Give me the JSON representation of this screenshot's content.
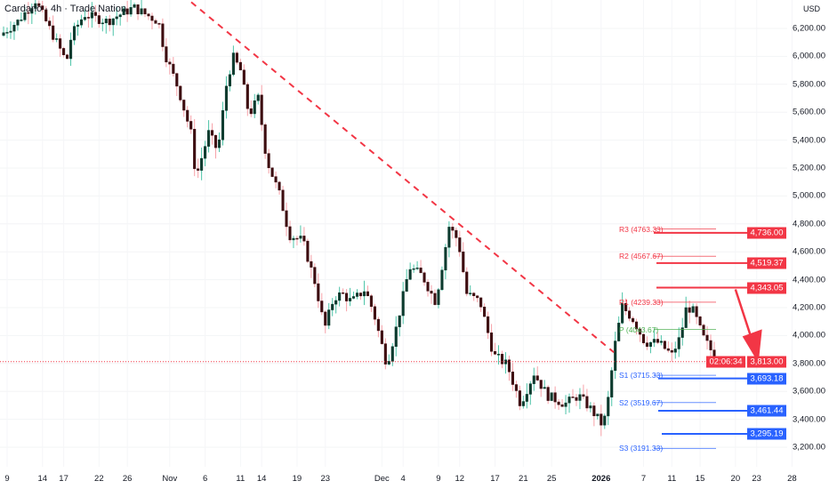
{
  "header": {
    "title": "Cardano · 4h · Trade Nation",
    "currency": "USD"
  },
  "chart_data": {
    "type": "candlestick",
    "title": "Cardano · 4h · Trade Nation",
    "ylabel": "USD",
    "ylim": [
      3100,
      6400
    ],
    "y_ticks": [
      "6,200.00",
      "6,000.00",
      "5,800.00",
      "5,600.00",
      "5,400.00",
      "5,200.00",
      "5,000.00",
      "4,800.00",
      "4,600.00",
      "4,400.00",
      "4,200.00",
      "4,000.00",
      "3,800.00",
      "3,600.00",
      "3,400.00",
      "3,200.00"
    ],
    "y_tick_values": [
      6200,
      6000,
      5800,
      5600,
      5400,
      5200,
      5000,
      4800,
      4600,
      4400,
      4200,
      4000,
      3800,
      3600,
      3400,
      3200
    ],
    "x_ticks": [
      {
        "label": "9",
        "day": 0
      },
      {
        "label": "14",
        "day": 5
      },
      {
        "label": "17",
        "day": 8
      },
      {
        "label": "22",
        "day": 13
      },
      {
        "label": "26",
        "day": 17
      },
      {
        "label": "Nov",
        "day": 23
      },
      {
        "label": "6",
        "day": 28
      },
      {
        "label": "11",
        "day": 33
      },
      {
        "label": "14",
        "day": 36
      },
      {
        "label": "19",
        "day": 41
      },
      {
        "label": "23",
        "day": 45
      },
      {
        "label": "Dec",
        "day": 53
      },
      {
        "label": "4",
        "day": 56
      },
      {
        "label": "9",
        "day": 61
      },
      {
        "label": "12",
        "day": 64
      },
      {
        "label": "17",
        "day": 69
      },
      {
        "label": "21",
        "day": 73
      },
      {
        "label": "25",
        "day": 77
      },
      {
        "label": "2026",
        "day": 84
      },
      {
        "label": "7",
        "day": 90
      },
      {
        "label": "11",
        "day": 94
      },
      {
        "label": "15",
        "day": 98
      },
      {
        "label": "20",
        "day": 103
      },
      {
        "label": "23",
        "day": 106
      },
      {
        "label": "28",
        "day": 111
      }
    ],
    "price_path": [
      [
        -1,
        6150
      ],
      [
        1.5,
        6250
      ],
      [
        4,
        6400
      ],
      [
        8.4,
        5960
      ],
      [
        9.1,
        6150
      ],
      [
        10.9,
        6300
      ],
      [
        14.1,
        6250
      ],
      [
        17.9,
        6350
      ],
      [
        21.4,
        6250
      ],
      [
        22.3,
        6020
      ],
      [
        24.2,
        5770
      ],
      [
        26,
        5450
      ],
      [
        26.7,
        5130
      ],
      [
        28.5,
        5450
      ],
      [
        29.8,
        5320
      ],
      [
        31.1,
        5830
      ],
      [
        32,
        5990
      ],
      [
        33,
        5900
      ],
      [
        34.2,
        5580
      ],
      [
        35.5,
        5700
      ],
      [
        36.7,
        5260
      ],
      [
        38.6,
        5000
      ],
      [
        39.9,
        4720
      ],
      [
        41.8,
        4680
      ],
      [
        43.6,
        4370
      ],
      [
        44.9,
        4050
      ],
      [
        46.2,
        4270
      ],
      [
        47.4,
        4300
      ],
      [
        48.7,
        4240
      ],
      [
        50.6,
        4330
      ],
      [
        51.8,
        4170
      ],
      [
        53.7,
        3790
      ],
      [
        55,
        4050
      ],
      [
        56.9,
        4490
      ],
      [
        58.7,
        4430
      ],
      [
        60.6,
        4240
      ],
      [
        62.5,
        4780
      ],
      [
        63.8,
        4680
      ],
      [
        65,
        4300
      ],
      [
        66.9,
        4240
      ],
      [
        68.8,
        3860
      ],
      [
        70.7,
        3790
      ],
      [
        72.6,
        3510
      ],
      [
        74.5,
        3730
      ],
      [
        76.4,
        3570
      ],
      [
        78.9,
        3510
      ],
      [
        80.8,
        3570
      ],
      [
        82.6,
        3470
      ],
      [
        84.3,
        3350
      ],
      [
        85.2,
        3600
      ],
      [
        85.8,
        3890
      ],
      [
        87,
        4210
      ],
      [
        88.6,
        4110
      ],
      [
        90.2,
        3950
      ],
      [
        92.1,
        3950
      ],
      [
        94,
        3860
      ],
      [
        95.2,
        3990
      ],
      [
        96.1,
        4210
      ],
      [
        97.1,
        4170
      ],
      [
        98.4,
        3990
      ],
      [
        99.6,
        3890
      ],
      [
        100.3,
        3813
      ]
    ],
    "current_price": {
      "value": "3,813.00",
      "countdown": "02:06:34",
      "price": 3813
    },
    "pivots": [
      {
        "label": "R3 (4763.33)",
        "value": 4763.33,
        "color": "#f23645"
      },
      {
        "label": "R2 (4567.67)",
        "value": 4567.67,
        "color": "#f23645"
      },
      {
        "label": "R1 (4239.33)",
        "value": 4239.33,
        "color": "#f23645"
      },
      {
        "label": "P (4043.67)",
        "value": 4043.67,
        "color": "#4caf50"
      },
      {
        "label": "S1 (3715.33)",
        "value": 3715.33,
        "color": "#2962ff"
      },
      {
        "label": "S2 (3519.67)",
        "value": 3519.67,
        "color": "#2962ff"
      },
      {
        "label": "S3 (3191.33)",
        "value": 3191.33,
        "color": "#2962ff"
      }
    ],
    "levels": [
      {
        "label": "4,736.00",
        "value": 4736,
        "color": "#f23645"
      },
      {
        "label": "4,519.37",
        "value": 4519.37,
        "color": "#f23645"
      },
      {
        "label": "4,343.05",
        "value": 4343.05,
        "color": "#f23645"
      },
      {
        "label": "3,693.18",
        "value": 3693.18,
        "color": "#2962ff"
      },
      {
        "label": "3,461.44",
        "value": 3461.44,
        "color": "#2962ff"
      },
      {
        "label": "3,295.19",
        "value": 3295.19,
        "color": "#2962ff"
      }
    ],
    "trendline": {
      "from": [
        21,
        6600
      ],
      "to": [
        85.8,
        3880
      ],
      "style": "dashed",
      "color": "#f23645"
    },
    "arrow": {
      "from": [
        103,
        4343
      ],
      "to": [
        106,
        3790
      ],
      "color": "#f23645",
      "direction": "down"
    }
  }
}
